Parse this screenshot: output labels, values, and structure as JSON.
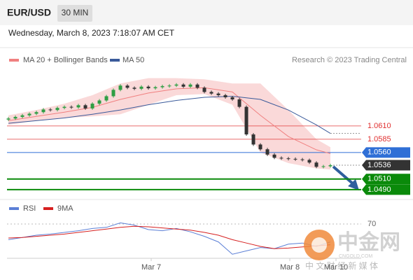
{
  "header": {
    "symbol": "EUR/USD",
    "interval": "30 MIN",
    "timestamp": "Wednesday, March 8, 2023 7:18:07 AM CET",
    "credit": "Research © 2023 Trading Central"
  },
  "chart_data": [
    {
      "type": "candlestick",
      "x": [
        0,
        1,
        2,
        3,
        4,
        5,
        6,
        7,
        8,
        9,
        10,
        11,
        12,
        13,
        14,
        15,
        16,
        17,
        18,
        19,
        20,
        21,
        22,
        23,
        24,
        25,
        26,
        27,
        28,
        29,
        30,
        31,
        32,
        33,
        34,
        35,
        36,
        37,
        38,
        39,
        40,
        41,
        42,
        43,
        44,
        45,
        46
      ],
      "open": [
        1.0622,
        1.0624,
        1.0627,
        1.063,
        1.0633,
        1.0636,
        1.0641,
        1.064,
        1.0644,
        1.0646,
        1.0645,
        1.0649,
        1.0643,
        1.0652,
        1.0658,
        1.0666,
        1.0678,
        1.0686,
        1.0682,
        1.068,
        1.0684,
        1.0681,
        1.0683,
        1.0685,
        1.0686,
        1.0688,
        1.0684,
        1.0688,
        1.0682,
        1.0674,
        1.0671,
        1.0668,
        1.0664,
        1.066,
        1.0646,
        1.0594,
        1.0575,
        1.0566,
        1.0556,
        1.055,
        1.0549,
        1.0548,
        1.0547,
        1.0546,
        1.0541,
        1.0533,
        1.0534
      ],
      "close": [
        1.0624,
        1.0627,
        1.063,
        1.0633,
        1.0636,
        1.0641,
        1.064,
        1.0644,
        1.0646,
        1.0645,
        1.0649,
        1.0643,
        1.0652,
        1.0658,
        1.0666,
        1.0678,
        1.0686,
        1.0682,
        1.068,
        1.0684,
        1.0681,
        1.0683,
        1.0685,
        1.0686,
        1.0688,
        1.0684,
        1.0688,
        1.0682,
        1.0674,
        1.0671,
        1.0668,
        1.0664,
        1.066,
        1.0646,
        1.0594,
        1.0575,
        1.0566,
        1.0556,
        1.055,
        1.0549,
        1.0548,
        1.0547,
        1.0546,
        1.0541,
        1.0533,
        1.0534,
        1.0536
      ],
      "up_color": "#2f9e44",
      "down_color": "#333333",
      "series": [
        {
          "name": "MA 20 + Bollinger Bands",
          "color": "#f08080",
          "band_color": "#f9cfcf",
          "x": [
            0,
            4,
            8,
            12,
            16,
            20,
            24,
            28,
            32,
            36,
            40,
            44,
            46
          ],
          "values": [
            1.062,
            1.0628,
            1.0636,
            1.0645,
            1.066,
            1.0672,
            1.068,
            1.0682,
            1.0674,
            1.063,
            1.059,
            1.0565,
            1.0558
          ],
          "upper": [
            1.063,
            1.064,
            1.0652,
            1.0668,
            1.069,
            1.07,
            1.07,
            1.0698,
            1.069,
            1.069,
            1.064,
            1.0585,
            1.057
          ],
          "lower": [
            1.0612,
            1.062,
            1.0625,
            1.0628,
            1.0632,
            1.065,
            1.0668,
            1.067,
            1.065,
            1.056,
            1.054,
            1.053,
            1.0528
          ]
        },
        {
          "name": "MA 50",
          "color": "#3a5a9a",
          "x": [
            0,
            4,
            8,
            12,
            16,
            20,
            24,
            28,
            32,
            36,
            40,
            44,
            46
          ],
          "values": [
            1.0615,
            1.062,
            1.0625,
            1.0632,
            1.064,
            1.065,
            1.0658,
            1.0664,
            1.0666,
            1.066,
            1.064,
            1.0612,
            1.0596
          ]
        }
      ],
      "levels": [
        {
          "value": 1.061,
          "label": "1.0610",
          "color": "#e03030",
          "style": "text"
        },
        {
          "value": 1.0585,
          "label": "1.0585",
          "color": "#e03030",
          "style": "text"
        },
        {
          "value": 1.056,
          "label": "1.0560",
          "color": "#2f6fd6",
          "style": "box"
        },
        {
          "value": 1.0536,
          "label": "1.0536",
          "color": "#333333",
          "style": "dotted"
        },
        {
          "value": 1.051,
          "label": "1.0510",
          "color": "#0a8a0a",
          "style": "box"
        },
        {
          "value": 1.049,
          "label": "1.0490",
          "color": "#0a8a0a",
          "style": "box"
        }
      ],
      "xlim": [
        -0.2,
        50.4
      ],
      "ylim": [
        1.0478,
        1.0722
      ]
    },
    {
      "type": "line",
      "series": [
        {
          "name": "RSI",
          "color": "#5b7fd6",
          "x": [
            0,
            2,
            4,
            6,
            8,
            10,
            12,
            14,
            16,
            18,
            20,
            22,
            24,
            26,
            28,
            30,
            32,
            34,
            36,
            38,
            40,
            42,
            44,
            46
          ],
          "values": [
            42,
            46,
            50,
            52,
            55,
            58,
            62,
            64,
            72,
            68,
            60,
            58,
            62,
            56,
            48,
            38,
            16,
            22,
            28,
            26,
            34,
            36,
            30,
            38
          ]
        },
        {
          "name": "9MA",
          "color": "#d62020",
          "x": [
            0,
            2,
            4,
            6,
            8,
            10,
            12,
            14,
            16,
            18,
            20,
            22,
            24,
            26,
            28,
            30,
            32,
            34,
            36,
            38,
            40,
            42,
            44,
            46
          ],
          "values": [
            45,
            46,
            48,
            50,
            52,
            55,
            58,
            61,
            64,
            66,
            65,
            63,
            61,
            59,
            55,
            50,
            42,
            36,
            30,
            26,
            27,
            29,
            31,
            33
          ]
        }
      ],
      "xlim": [
        -0.2,
        50.4
      ],
      "ylim": [
        0,
        100
      ],
      "yticks": [
        70
      ],
      "xticks": [
        {
          "value": 20.4,
          "label": "Mar 7"
        },
        {
          "value": 40.2,
          "label": "Mar 8"
        },
        {
          "value": 46.8,
          "label": "Mar 10"
        }
      ]
    }
  ],
  "watermark": {
    "name": "中金网",
    "site": "CNGOLD.COM",
    "slogan": "中 文 财 经 新 媒 体"
  }
}
